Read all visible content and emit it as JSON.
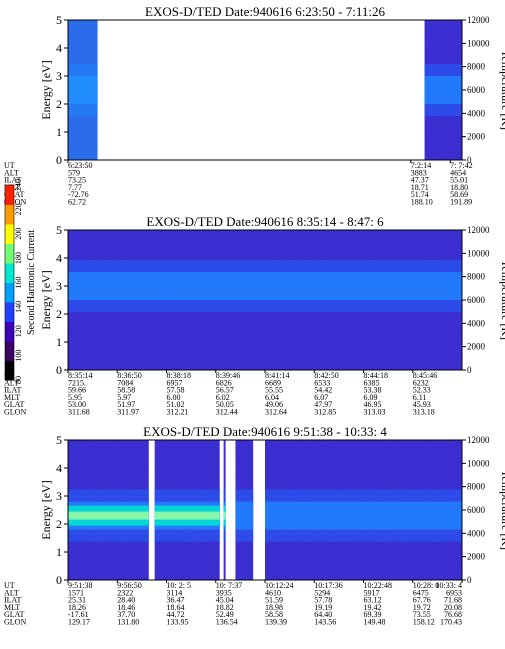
{
  "chart_data": [
    {
      "type": "heatmap",
      "title": "EXOS-D/TED   Date:940616  6:23:50 - 7:11:26",
      "ylabel": "Energy [eV]",
      "y2label": "Temperature [K]",
      "ylim": [
        0,
        5
      ],
      "y2lim": [
        0,
        12000
      ],
      "yticks": [
        "0",
        "1",
        "2",
        "3",
        "4",
        "5"
      ],
      "y2ticks": [
        "0",
        "2000",
        "4000",
        "6000",
        "8000",
        "10000",
        "12000"
      ],
      "data_coverage": [
        [
          0.0,
          0.075
        ],
        [
          0.905,
          1.0
        ]
      ],
      "band_center_ev": 2.5,
      "ephemeris": {
        "row_labels": [
          "UT",
          "ALT",
          "ILAT",
          "MLT",
          "GLAT",
          "GLON"
        ],
        "columns": [
          {
            "pos": 0.0,
            "values": [
              "6:23:50",
              "579",
              "73.25",
              "7.77",
              "-72.76",
              "62.72"
            ]
          },
          {
            "pos": 0.87,
            "values": [
              "7:2:14",
              "3883",
              "47.37",
              "18.71",
              "51.74",
              "188.10"
            ]
          },
          {
            "pos": 0.97,
            "values": [
              "7: 7:42",
              "4654",
              "55.01",
              "18.80",
              "58.69",
              "191.89"
            ]
          }
        ]
      }
    },
    {
      "type": "heatmap",
      "title": "EXOS-D/TED   Date:940616  8:35:14 - 8:47: 6",
      "ylabel": "Energy [eV]",
      "y2label": "Temperature [K]",
      "ylim": [
        0,
        5
      ],
      "y2lim": [
        0,
        12000
      ],
      "yticks": [
        "0",
        "1",
        "2",
        "3",
        "4",
        "5"
      ],
      "y2ticks": [
        "0",
        "2000",
        "4000",
        "6000",
        "8000",
        "10000",
        "12000"
      ],
      "data_coverage": [
        [
          0.0,
          1.0
        ]
      ],
      "band_center_ev": 3.0,
      "ephemeris": {
        "row_labels": [
          "UT",
          "ALT",
          "ILAT",
          "MLT",
          "GLAT",
          "GLON"
        ],
        "columns": [
          {
            "pos": 0.0,
            "values": [
              "8:35:14",
              "7215.",
              "59.66",
              "5.95",
              "53.00",
              "311.68"
            ]
          },
          {
            "pos": 0.125,
            "values": [
              "8:36:50",
              "7084",
              "58.58",
              "5.97",
              "51.97",
              "311.97"
            ]
          },
          {
            "pos": 0.25,
            "values": [
              "8:38:18",
              "6957",
              "57.58",
              "6.00",
              "51.02",
              "312.21"
            ]
          },
          {
            "pos": 0.375,
            "values": [
              "8:39:46",
              "6826",
              "56.57",
              "6.02",
              "50.05",
              "312.44"
            ]
          },
          {
            "pos": 0.5,
            "values": [
              "8:41:14",
              "6689",
              "55.55",
              "6.04",
              "49.06",
              "312.64"
            ]
          },
          {
            "pos": 0.625,
            "values": [
              "8:42:50",
              "6533",
              "54.42",
              "6.07",
              "47.97",
              "312.85"
            ]
          },
          {
            "pos": 0.75,
            "values": [
              "8:44:18",
              "6385",
              "53.38",
              "6.09",
              "46.95",
              "313.03"
            ]
          },
          {
            "pos": 0.875,
            "values": [
              "8:45:46",
              "6232",
              "52.33",
              "6.11",
              "45.93",
              "313.18"
            ]
          }
        ]
      }
    },
    {
      "type": "heatmap",
      "title": "EXOS-D/TED   Date:940616  9:51:38 - 10:33: 4",
      "ylabel": "Energy [eV]",
      "y2label": "Temperature [K]",
      "ylim": [
        0,
        5
      ],
      "y2lim": [
        0,
        12000
      ],
      "yticks": [
        "0",
        "1",
        "2",
        "3",
        "4",
        "5"
      ],
      "y2ticks": [
        "0",
        "2000",
        "4000",
        "6000",
        "8000",
        "10000",
        "12000"
      ],
      "data_coverage": [
        [
          0.0,
          0.205
        ],
        [
          0.22,
          0.385
        ],
        [
          0.395,
          0.4
        ],
        [
          0.425,
          0.47
        ],
        [
          0.5,
          1.0
        ]
      ],
      "band_center_ev": 2.3,
      "ephemeris": {
        "row_labels": [
          "UT",
          "ALT",
          "ILAT",
          "MLT",
          "GLAT",
          "GLON"
        ],
        "columns": [
          {
            "pos": 0.0,
            "values": [
              "9:51:38",
              "1571",
              "25.31",
              "18.26",
              "-17.61",
              "129.17"
            ]
          },
          {
            "pos": 0.125,
            "values": [
              "9:56:50",
              "2322",
              "28.40",
              "18.46",
              "37.70",
              "131.80"
            ]
          },
          {
            "pos": 0.25,
            "values": [
              "10: 2: 5",
              "3114",
              "36.47",
              "18.64",
              "44.72",
              "133.95"
            ]
          },
          {
            "pos": 0.375,
            "values": [
              "10: 7:37",
              "3935",
              "45.04",
              "18.82",
              "52.49",
              "136.54"
            ]
          },
          {
            "pos": 0.5,
            "values": [
              "10:12:24",
              "4610",
              "51.59",
              "18.98",
              "58.58",
              "139.39"
            ]
          },
          {
            "pos": 0.625,
            "values": [
              "10:17:36",
              "5294",
              "57.78",
              "19.19",
              "64.40",
              "143.56"
            ]
          },
          {
            "pos": 0.75,
            "values": [
              "10:22:48",
              "5917",
              "63.12",
              "19.42",
              "69.39",
              "149.48"
            ]
          },
          {
            "pos": 0.875,
            "values": [
              "10:28: 0",
              "6475",
              "67.76",
              "19.72",
              "73.55",
              "158.12"
            ]
          },
          {
            "pos": 1.0,
            "values": [
              "10:33: 4",
              "6953",
              "71.68",
              "20.08",
              "76.68",
              "170.43"
            ]
          }
        ]
      }
    }
  ],
  "colorbar": {
    "label": "Second Harmonic Current",
    "ticks": [
      "80",
      "100",
      "120",
      "140",
      "160",
      "180",
      "200",
      "220",
      "240"
    ],
    "colors": [
      "#000000",
      "#3a0066",
      "#3c00b8",
      "#2040ff",
      "#00a0ff",
      "#00e8d0",
      "#70ff70",
      "#ffff00",
      "#ff9a00",
      "#ff2200"
    ]
  }
}
